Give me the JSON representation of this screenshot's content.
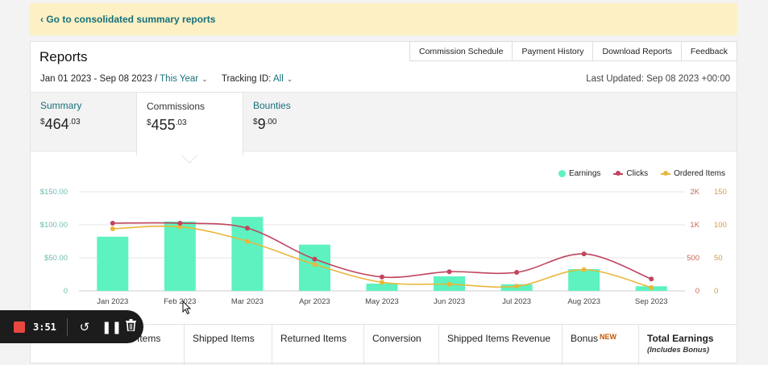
{
  "banner": {
    "back_link": "‹ Go to consolidated summary reports"
  },
  "header": {
    "title": "Reports",
    "tabs": [
      "Commission Schedule",
      "Payment History",
      "Download Reports",
      "Feedback"
    ],
    "date_range": "Jan 01 2023 - Sep 08 2023 /",
    "date_preset": "This Year",
    "tracking_label": "Tracking ID:",
    "tracking_value": "All",
    "last_updated": "Last Updated: Sep 08 2023 +00:00"
  },
  "summary": {
    "stats": [
      {
        "label": "Summary",
        "currency": "$",
        "whole": "464",
        "cents": ".03"
      },
      {
        "label": "Commissions",
        "currency": "$",
        "whole": "455",
        "cents": ".03"
      },
      {
        "label": "Bounties",
        "currency": "$",
        "whole": "9",
        "cents": ".00"
      }
    ],
    "active_index": 1
  },
  "chart_data": {
    "type": "bar",
    "categories": [
      "Jan 2023",
      "Feb 2023",
      "Mar 2023",
      "Apr 2023",
      "May 2023",
      "Jun 2023",
      "Jul 2023",
      "Aug 2023",
      "Sep 2023"
    ],
    "series": [
      {
        "name": "Earnings",
        "type": "bar",
        "axis": "left",
        "color": "#5df2c0",
        "values": [
          82,
          105,
          112,
          70,
          11,
          22,
          10,
          33,
          7
        ]
      },
      {
        "name": "Clicks",
        "type": "line",
        "axis": "right-1",
        "color": "#c0455e",
        "values": [
          1050,
          1050,
          950,
          480,
          210,
          290,
          280,
          560,
          180
        ]
      },
      {
        "name": "Ordered Items",
        "type": "line",
        "axis": "right-2",
        "color": "#e8b73a",
        "values": [
          94,
          97,
          75,
          40,
          13,
          10,
          7,
          32,
          5
        ]
      }
    ],
    "y_left": {
      "ticks": [
        "0",
        "$50.00",
        "$100.00",
        "$150.00"
      ],
      "range": [
        0,
        150
      ]
    },
    "y_right_1": {
      "ticks": [
        "0",
        "500",
        "1K",
        "2K"
      ],
      "tick_values": [
        0,
        500,
        1000,
        2000
      ]
    },
    "y_right_2": {
      "ticks": [
        "0",
        "50",
        "100",
        "150"
      ],
      "range": [
        0,
        150
      ]
    },
    "legend_position": "top-right",
    "grid": true
  },
  "table": {
    "columns": [
      "Items",
      "Shipped Items",
      "Returned Items",
      "Conversion",
      "Shipped Items Revenue",
      "Bonus",
      "Total Earnings"
    ],
    "bonus_badge": "NEW",
    "total_sub": "(Includes Bonus)"
  },
  "recorder": {
    "time": "3:51"
  },
  "colors": {
    "accent": "#16707a",
    "banner": "#fcf0c4",
    "earnings": "#5df2c0",
    "clicks": "#c0455e",
    "ordered": "#e8b73a"
  }
}
